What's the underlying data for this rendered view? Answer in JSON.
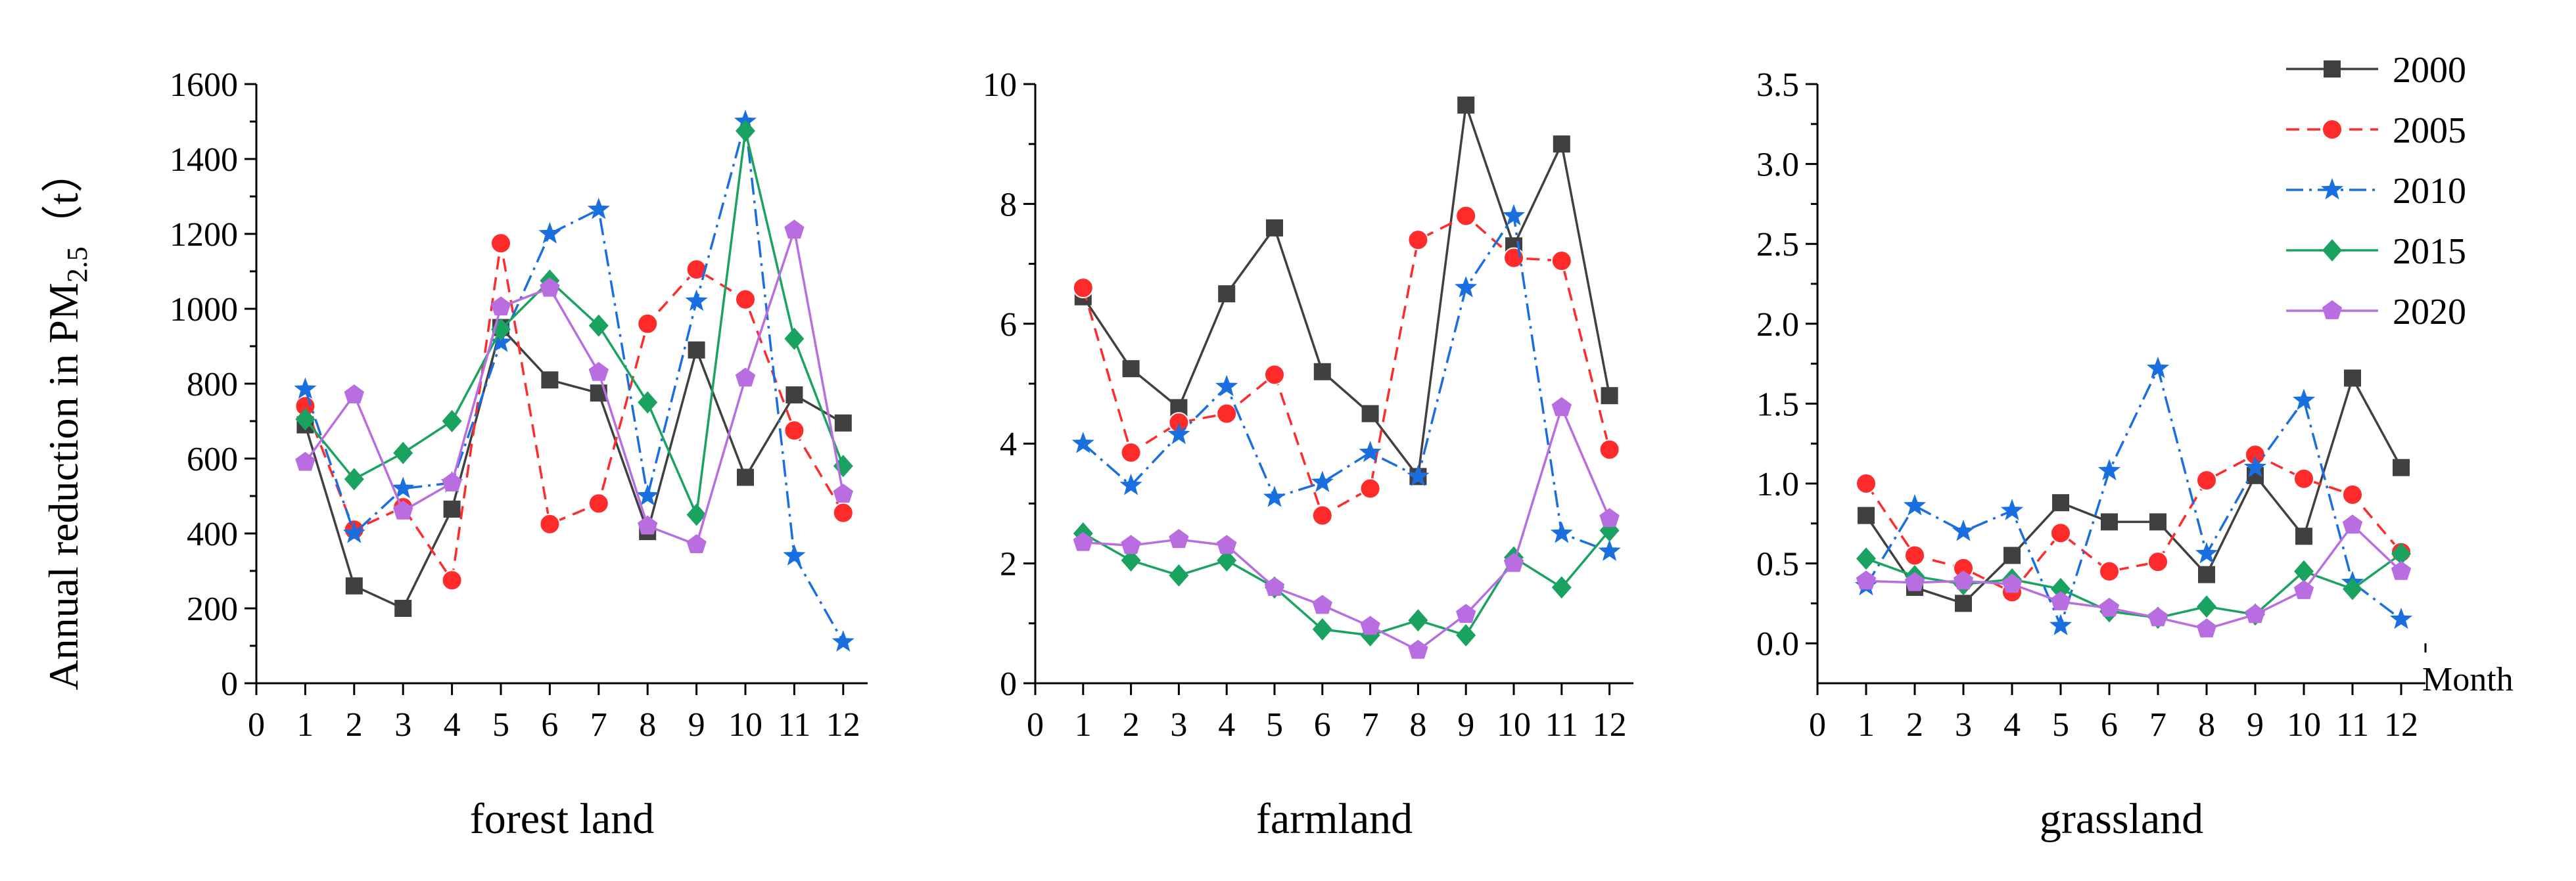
{
  "chart_data": {
    "type": "line",
    "y_axis_label": "Annual reduction in PM",
    "y_axis_label_sub": "2.5",
    "y_axis_label_unit": "（t）",
    "month_label": "Month",
    "x_ticks": [
      "0",
      "1",
      "2",
      "3",
      "4",
      "5",
      "6",
      "7",
      "8",
      "9",
      "10",
      "11",
      "12"
    ],
    "series_styles": [
      {
        "name": "2000",
        "color": "#404040",
        "marker": "square",
        "dash": ""
      },
      {
        "name": "2005",
        "color": "#ff2a2a",
        "marker": "circle",
        "dash": "20,12"
      },
      {
        "name": "2010",
        "color": "#1a6fe0",
        "marker": "star",
        "dash": "26,9,4,9"
      },
      {
        "name": "2015",
        "color": "#1aa360",
        "marker": "diamond",
        "dash": ""
      },
      {
        "name": "2020",
        "color": "#b86ee0",
        "marker": "pentagon",
        "dash": ""
      }
    ],
    "panels": [
      {
        "id": "forest",
        "xlabel": "forest land",
        "ylim": [
          0,
          1600
        ],
        "yticks": [
          0,
          200,
          400,
          600,
          800,
          1000,
          1200,
          1400,
          1600
        ],
        "ytick_labels": [
          "0",
          "200",
          "400",
          "600",
          "800",
          "1000",
          "1200",
          "1400",
          "1600"
        ],
        "x": [
          1,
          2,
          3,
          4,
          5,
          6,
          7,
          8,
          9,
          10,
          11,
          12
        ],
        "series": [
          {
            "name": "2000",
            "values": [
              690,
              260,
              200,
              465,
              950,
              810,
              775,
              405,
              890,
              550,
              770,
              695
            ]
          },
          {
            "name": "2005",
            "values": [
              740,
              410,
              470,
              275,
              1175,
              425,
              480,
              960,
              1105,
              1025,
              675,
              455
            ]
          },
          {
            "name": "2010",
            "values": [
              785,
              400,
              520,
              535,
              910,
              1200,
              1265,
              500,
              1020,
              1500,
              340,
              110
            ]
          },
          {
            "name": "2015",
            "values": [
              705,
              545,
              615,
              700,
              945,
              1075,
              955,
              750,
              450,
              1475,
              920,
              580
            ]
          },
          {
            "name": "2020",
            "values": [
              590,
              770,
              460,
              535,
              1005,
              1055,
              830,
              420,
              370,
              815,
              1210,
              505
            ]
          }
        ]
      },
      {
        "id": "farmland",
        "xlabel": "farmland",
        "ylim": [
          0,
          10
        ],
        "yticks": [
          0,
          2,
          4,
          6,
          8,
          10
        ],
        "ytick_labels": [
          "0",
          "2",
          "4",
          "6",
          "8",
          "10"
        ],
        "x": [
          1,
          2,
          3,
          4,
          5,
          6,
          7,
          8,
          9,
          10,
          11,
          12
        ],
        "series": [
          {
            "name": "2000",
            "values": [
              6.45,
              5.25,
              4.6,
              6.5,
              7.6,
              5.2,
              4.5,
              3.45,
              9.65,
              7.3,
              9.0,
              4.8
            ]
          },
          {
            "name": "2005",
            "values": [
              6.6,
              3.85,
              4.35,
              4.5,
              5.15,
              2.8,
              3.25,
              7.4,
              7.8,
              7.1,
              7.05,
              3.9
            ]
          },
          {
            "name": "2010",
            "values": [
              4.0,
              3.3,
              4.15,
              4.95,
              3.1,
              3.35,
              3.85,
              3.45,
              6.6,
              7.8,
              2.5,
              2.2
            ]
          },
          {
            "name": "2015",
            "values": [
              2.5,
              2.05,
              1.8,
              2.05,
              1.6,
              0.9,
              0.8,
              1.05,
              0.8,
              2.1,
              1.6,
              2.55
            ]
          },
          {
            "name": "2020",
            "values": [
              2.35,
              2.3,
              2.4,
              2.3,
              1.6,
              1.3,
              0.95,
              0.55,
              1.15,
              2.0,
              4.6,
              2.75
            ]
          }
        ]
      },
      {
        "id": "grassland",
        "xlabel": "grassland",
        "ylim": [
          -0.25,
          3.5
        ],
        "yticks": [
          0,
          0.5,
          1,
          1.5,
          2,
          2.5,
          3,
          3.5
        ],
        "ytick_labels": [
          "0.0",
          "0.5",
          "1.0",
          "1.5",
          "2.0",
          "2.5",
          "3.0",
          "3.5"
        ],
        "x": [
          1,
          2,
          3,
          4,
          5,
          6,
          7,
          8,
          9,
          10,
          11,
          12
        ],
        "series": [
          {
            "name": "2000",
            "values": [
              0.8,
              0.35,
              0.25,
              0.55,
              0.88,
              0.76,
              0.76,
              0.43,
              1.05,
              0.67,
              1.66,
              1.1
            ]
          },
          {
            "name": "2005",
            "values": [
              1.0,
              0.55,
              0.47,
              0.32,
              0.69,
              0.45,
              0.51,
              1.02,
              1.18,
              1.03,
              0.93,
              0.57
            ]
          },
          {
            "name": "2010",
            "values": [
              0.36,
              0.86,
              0.7,
              0.83,
              0.11,
              1.08,
              1.72,
              0.56,
              1.1,
              1.52,
              0.38,
              0.15
            ]
          },
          {
            "name": "2015",
            "values": [
              0.53,
              0.42,
              0.37,
              0.4,
              0.34,
              0.2,
              0.16,
              0.23,
              0.18,
              0.45,
              0.34,
              0.56
            ]
          },
          {
            "name": "2020",
            "values": [
              0.39,
              0.38,
              0.39,
              0.37,
              0.26,
              0.22,
              0.16,
              0.09,
              0.18,
              0.33,
              0.74,
              0.45
            ]
          }
        ]
      }
    ]
  }
}
